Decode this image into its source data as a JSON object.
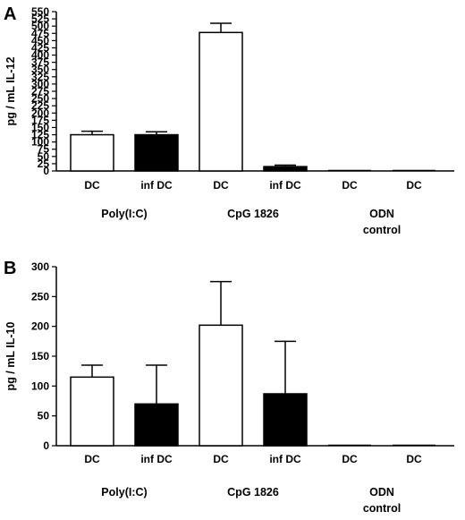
{
  "chart_data": [
    {
      "panel": "A",
      "type": "bar",
      "ylabel": "pg / mL IL-12",
      "ylim": [
        0,
        550
      ],
      "yticks": [
        0,
        25,
        50,
        75,
        100,
        125,
        150,
        175,
        200,
        225,
        250,
        275,
        300,
        325,
        350,
        375,
        400,
        425,
        450,
        475,
        500,
        525,
        550
      ],
      "yticklabels": [
        "0",
        "25",
        "50",
        "75",
        "100",
        "125",
        "150",
        "175",
        "200",
        "225",
        "250",
        "275",
        "300",
        "325",
        "350",
        "375",
        "400",
        "425",
        "450",
        "475",
        "500",
        "525",
        "550"
      ],
      "categories": [
        "DC",
        "inf DC",
        "DC",
        "inf DC",
        "DC",
        "DC"
      ],
      "values": [
        125,
        125,
        478,
        15,
        0,
        0
      ],
      "errors": [
        12,
        10,
        32,
        5,
        0,
        0
      ],
      "fills": [
        "#ffffff",
        "#000000",
        "#ffffff",
        "#000000",
        "#ffffff",
        "#ffffff"
      ],
      "groups": [
        {
          "lines": [
            "Poly(I:C)"
          ],
          "categories": [
            0,
            1
          ]
        },
        {
          "lines": [
            "CpG 1826"
          ],
          "categories": [
            2,
            3
          ]
        },
        {
          "lines": [
            "ODN",
            "control"
          ],
          "categories": [
            4,
            5
          ]
        }
      ]
    },
    {
      "panel": "B",
      "type": "bar",
      "ylabel": "pg / mL IL-10",
      "ylim": [
        0,
        300
      ],
      "yticks": [
        0,
        50,
        100,
        150,
        200,
        250,
        300
      ],
      "yticklabels": [
        "0",
        "50",
        "100",
        "150",
        "200",
        "250",
        "300"
      ],
      "categories": [
        "DC",
        "inf DC",
        "DC",
        "inf DC",
        "DC",
        "DC"
      ],
      "values": [
        115,
        70,
        202,
        87,
        0,
        0
      ],
      "errors": [
        20,
        65,
        73,
        88,
        0,
        0
      ],
      "fills": [
        "#ffffff",
        "#000000",
        "#ffffff",
        "#000000",
        "#ffffff",
        "#ffffff"
      ],
      "groups": [
        {
          "lines": [
            "Poly(I:C)"
          ],
          "categories": [
            0,
            1
          ]
        },
        {
          "lines": [
            "CpG 1826"
          ],
          "categories": [
            2,
            3
          ]
        },
        {
          "lines": [
            "ODN",
            "control"
          ],
          "categories": [
            4,
            5
          ]
        }
      ]
    }
  ]
}
